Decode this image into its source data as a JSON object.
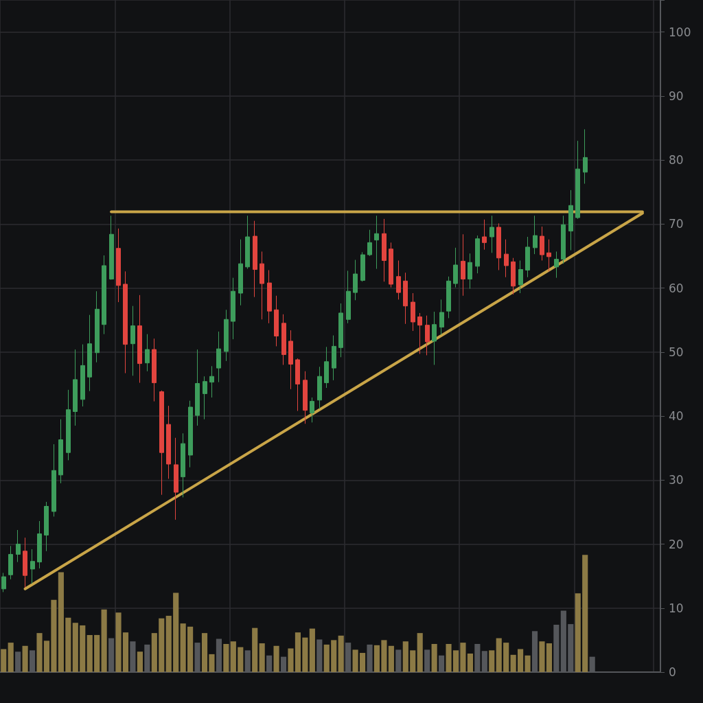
{
  "chart_data": {
    "type": "candlestick",
    "categories": [
      null,
      null,
      null,
      null,
      null,
      null,
      null,
      null,
      null,
      null,
      null,
      null,
      null,
      null,
      null,
      null,
      null,
      null,
      null,
      null,
      null,
      null,
      null,
      null,
      null,
      null,
      null,
      null,
      null,
      null,
      null,
      null,
      null,
      null,
      null,
      null,
      null,
      null,
      null,
      null,
      null,
      null,
      null,
      null,
      null,
      null,
      null,
      null,
      null,
      null,
      null,
      null,
      null,
      null,
      null,
      null,
      null,
      null,
      null,
      null,
      null,
      null,
      null,
      null,
      null,
      null,
      null,
      null,
      null,
      null,
      null,
      null,
      null,
      null,
      null,
      null,
      null,
      null,
      null,
      null,
      null,
      null,
      null,
      null,
      null,
      null,
      null,
      null,
      null,
      null,
      null,
      null
    ],
    "series": [
      {
        "type": "bar",
        "values": [
          3.6,
          4.6,
          3.2,
          4.1,
          3.4,
          6.1,
          4.9,
          11.3,
          15.6,
          8.5,
          7.7,
          7.3,
          5.8,
          5.8,
          9.8,
          5.3,
          9.3,
          6.2,
          4.8,
          3.2,
          4.3,
          6.1,
          8.4,
          8.8,
          12.4,
          7.6,
          7.1,
          4.6,
          6.1,
          2.8,
          5.2,
          4.4,
          4.8,
          3.9,
          3.4,
          6.9,
          4.5,
          2.6,
          4.1,
          2.4,
          3.7,
          6.2,
          5.4,
          6.8,
          5.1,
          4.3,
          5.0,
          5.7,
          4.6,
          3.5,
          3.0,
          4.3,
          4.2,
          5.0,
          4.1,
          3.5,
          4.8,
          3.4,
          6.1,
          3.5,
          4.4,
          2.6,
          4.4,
          3.4,
          4.6,
          2.9,
          4.4,
          3.3,
          3.4,
          5.3,
          4.6,
          2.7,
          3.6,
          2.6,
          6.4,
          4.8,
          4.5,
          7.4,
          9.6,
          7.5,
          12.3,
          18.3,
          2.4,
          null,
          null,
          null,
          null,
          null,
          null,
          null,
          null,
          null
        ],
        "colors": [
          "#8c7a45",
          "#8c7a45",
          "#55575b",
          "#8c7a45",
          "#55575b",
          "#8c7a45",
          "#8c7a45",
          "#8c7a45",
          "#8c7a45",
          "#8c7a45",
          "#8c7a45",
          "#8c7a45",
          "#8c7a45",
          "#8c7a45",
          "#8c7a45",
          "#55575b",
          "#8c7a45",
          "#8c7a45",
          "#55575b",
          "#8c7a45",
          "#55575b",
          "#8c7a45",
          "#8c7a45",
          "#8c7a45",
          "#8c7a45",
          "#8c7a45",
          "#8c7a45",
          "#55575b",
          "#8c7a45",
          "#8c7a45",
          "#55575b",
          "#8c7a45",
          "#8c7a45",
          "#8c7a45",
          "#55575b",
          "#8c7a45",
          "#8c7a45",
          "#55575b",
          "#8c7a45",
          "#55575b",
          "#8c7a45",
          "#8c7a45",
          "#8c7a45",
          "#8c7a45",
          "#55575b",
          "#8c7a45",
          "#8c7a45",
          "#8c7a45",
          "#55575b",
          "#8c7a45",
          "#8c7a45",
          "#55575b",
          "#8c7a45",
          "#8c7a45",
          "#8c7a45",
          "#55575b",
          "#8c7a45",
          "#8c7a45",
          "#8c7a45",
          "#55575b",
          "#8c7a45",
          "#55575b",
          "#8c7a45",
          "#8c7a45",
          "#8c7a45",
          "#8c7a45",
          "#55575b",
          "#55575b",
          "#8c7a45",
          "#8c7a45",
          "#8c7a45",
          "#8c7a45",
          "#8c7a45",
          "#8c7a45",
          "#55575b",
          "#8c7a45",
          "#8c7a45",
          "#55575b",
          "#55575b",
          "#55575b",
          "#8c7a45",
          "#8c7a45",
          "#55575b",
          null,
          null,
          null,
          null,
          null,
          null,
          null,
          null,
          null
        ]
      },
      {
        "type": "line",
        "color": "#c9a548",
        "values": [
          null,
          null,
          null,
          13.0,
          null,
          null,
          null,
          null,
          null,
          null,
          null,
          null,
          null,
          null,
          null,
          null,
          null,
          null,
          null,
          null,
          null,
          null,
          null,
          null,
          null,
          null,
          null,
          null,
          null,
          null,
          null,
          null,
          null,
          null,
          null,
          null,
          null,
          null,
          null,
          null,
          null,
          null,
          null,
          null,
          null,
          null,
          null,
          null,
          null,
          null,
          null,
          null,
          null,
          null,
          null,
          null,
          null,
          null,
          null,
          null,
          null,
          null,
          null,
          null,
          null,
          null,
          null,
          null,
          null,
          null,
          null,
          null,
          null,
          null,
          null,
          null,
          null,
          null,
          null,
          null,
          null,
          null,
          null,
          null,
          null,
          null,
          null,
          null,
          null,
          71.7,
          null,
          null
        ]
      },
      {
        "type": "line",
        "color": "#c9a548",
        "values": [
          null,
          null,
          null,
          null,
          null,
          null,
          null,
          null,
          null,
          null,
          null,
          null,
          null,
          null,
          null,
          71.9,
          null,
          null,
          null,
          null,
          null,
          null,
          null,
          null,
          null,
          null,
          null,
          null,
          null,
          null,
          null,
          null,
          null,
          null,
          null,
          null,
          null,
          null,
          null,
          null,
          null,
          null,
          null,
          null,
          null,
          null,
          null,
          null,
          null,
          null,
          null,
          null,
          null,
          null,
          null,
          null,
          null,
          null,
          null,
          null,
          null,
          null,
          null,
          null,
          null,
          null,
          null,
          null,
          null,
          null,
          null,
          null,
          null,
          null,
          null,
          null,
          null,
          null,
          null,
          null,
          null,
          null,
          null,
          null,
          null,
          null,
          null,
          null,
          null,
          71.9,
          null,
          null
        ]
      },
      {
        "ohlc": [
          [
            13.0,
            15.5,
            12.5,
            14.9
          ],
          [
            15.2,
            19.7,
            14.5,
            18.4
          ],
          [
            18.4,
            22.2,
            17.2,
            20.0
          ],
          [
            18.9,
            21.0,
            13.2,
            15.1
          ],
          [
            16.1,
            19.2,
            13.8,
            17.3
          ],
          [
            17.2,
            23.6,
            16.2,
            21.6
          ],
          [
            21.4,
            26.6,
            18.9,
            25.9
          ],
          [
            25.1,
            35.6,
            24.3,
            31.5
          ],
          [
            30.8,
            39.5,
            29.5,
            36.3
          ],
          [
            34.3,
            44.1,
            33.1,
            41.0
          ],
          [
            40.7,
            50.4,
            38.5,
            45.7
          ],
          [
            42.6,
            51.2,
            41.5,
            47.9
          ],
          [
            46.1,
            55.8,
            43.9,
            51.3
          ],
          [
            49.9,
            59.5,
            48.4,
            56.7
          ],
          [
            54.3,
            65.1,
            52.8,
            63.5
          ],
          [
            61.4,
            71.3,
            61.3,
            68.4
          ],
          [
            66.2,
            69.3,
            57.8,
            60.4
          ],
          [
            60.6,
            62.6,
            46.7,
            51.2
          ],
          [
            51.3,
            57.2,
            46.3,
            54.1
          ],
          [
            54.1,
            58.9,
            45.2,
            48.2
          ],
          [
            48.3,
            52.8,
            47.0,
            50.4
          ],
          [
            50.4,
            52.1,
            42.3,
            45.2
          ],
          [
            43.8,
            44.0,
            27.7,
            34.3
          ],
          [
            38.7,
            41.6,
            30.2,
            32.5
          ],
          [
            32.4,
            36.6,
            23.8,
            28.1
          ],
          [
            30.5,
            37.3,
            27.3,
            35.7
          ],
          [
            33.9,
            42.4,
            32.0,
            41.4
          ],
          [
            40.1,
            50.4,
            38.5,
            45.1
          ],
          [
            43.5,
            46.2,
            39.5,
            45.4
          ],
          [
            45.3,
            47.8,
            42.9,
            46.2
          ],
          [
            47.5,
            53.2,
            45.3,
            50.5
          ],
          [
            50.1,
            56.6,
            48.6,
            55.1
          ],
          [
            54.8,
            61.6,
            52.0,
            59.5
          ],
          [
            59.2,
            67.6,
            57.3,
            63.8
          ],
          [
            63.3,
            71.3,
            63.0,
            68.0
          ],
          [
            68.1,
            70.5,
            58.6,
            62.9
          ],
          [
            63.8,
            65.7,
            55.1,
            60.7
          ],
          [
            60.8,
            62.8,
            54.5,
            56.4
          ],
          [
            56.6,
            58.8,
            50.9,
            52.5
          ],
          [
            54.5,
            55.9,
            48.0,
            49.6
          ],
          [
            51.7,
            53.4,
            44.2,
            48.1
          ],
          [
            48.8,
            49.0,
            40.8,
            45.0
          ],
          [
            45.6,
            47.0,
            38.8,
            40.9
          ],
          [
            40.5,
            42.9,
            39.0,
            42.3
          ],
          [
            42.5,
            47.7,
            41.1,
            46.2
          ],
          [
            45.2,
            50.8,
            44.4,
            48.5
          ],
          [
            47.5,
            52.6,
            45.6,
            50.9
          ],
          [
            50.7,
            57.6,
            49.2,
            56.1
          ],
          [
            55.1,
            62.7,
            54.5,
            59.5
          ],
          [
            59.3,
            64.4,
            58.1,
            62.2
          ],
          [
            61.2,
            65.6,
            61.0,
            65.2
          ],
          [
            65.2,
            69.1,
            65.0,
            67.1
          ],
          [
            67.5,
            71.3,
            63.0,
            68.5
          ],
          [
            68.5,
            70.8,
            61.0,
            64.3
          ],
          [
            66.1,
            67.1,
            60.1,
            60.6
          ],
          [
            61.8,
            64.3,
            58.2,
            59.3
          ],
          [
            61.1,
            62.4,
            54.4,
            57.2
          ],
          [
            57.8,
            59.2,
            53.3,
            54.7
          ],
          [
            55.5,
            56.1,
            49.7,
            54.2
          ],
          [
            54.2,
            55.7,
            49.5,
            51.6
          ],
          [
            51.7,
            56.3,
            48.0,
            54.3
          ],
          [
            53.9,
            58.2,
            52.7,
            56.2
          ],
          [
            56.4,
            61.8,
            55.3,
            61.1
          ],
          [
            60.7,
            66.3,
            60.1,
            63.6
          ],
          [
            64.2,
            68.4,
            58.8,
            61.4
          ],
          [
            61.4,
            65.4,
            59.9,
            64.0
          ],
          [
            63.4,
            68.2,
            62.3,
            67.7
          ],
          [
            68.0,
            70.7,
            66.0,
            67.1
          ],
          [
            68.0,
            71.3,
            65.5,
            69.5
          ],
          [
            69.5,
            70.1,
            62.8,
            64.7
          ],
          [
            65.3,
            67.6,
            61.7,
            63.5
          ],
          [
            64.1,
            64.7,
            59.0,
            60.3
          ],
          [
            60.5,
            64.3,
            59.2,
            62.9
          ],
          [
            62.8,
            68.0,
            61.7,
            66.4
          ],
          [
            66.3,
            71.3,
            65.3,
            68.2
          ],
          [
            68.1,
            69.6,
            64.3,
            65.2
          ],
          [
            65.5,
            67.6,
            62.6,
            64.9
          ],
          [
            63.3,
            65.7,
            61.6,
            64.5
          ],
          [
            64.5,
            71.3,
            63.8,
            69.9
          ],
          [
            68.9,
            75.3,
            65.9,
            72.9
          ],
          [
            71.0,
            83.0,
            70.8,
            78.6
          ],
          [
            78.1,
            84.8,
            76.3,
            80.4
          ],
          null,
          null,
          null,
          null,
          null,
          null,
          null,
          null,
          null,
          null
        ],
        "colors": [
          "#3e9d5c",
          "#3e9d5c",
          "#3e9d5c",
          "#e2453f",
          "#3e9d5c",
          "#3e9d5c",
          "#3e9d5c",
          "#3e9d5c",
          "#3e9d5c",
          "#3e9d5c",
          "#3e9d5c",
          "#3e9d5c",
          "#3e9d5c",
          "#3e9d5c",
          "#3e9d5c",
          "#3e9d5c",
          "#e2453f",
          "#e2453f",
          "#3e9d5c",
          "#e2453f",
          "#3e9d5c",
          "#e2453f",
          "#e2453f",
          "#e2453f",
          "#e2453f",
          "#3e9d5c",
          "#3e9d5c",
          "#3e9d5c",
          "#3e9d5c",
          "#3e9d5c",
          "#3e9d5c",
          "#3e9d5c",
          "#3e9d5c",
          "#3e9d5c",
          "#3e9d5c",
          "#e2453f",
          "#e2453f",
          "#e2453f",
          "#e2453f",
          "#e2453f",
          "#e2453f",
          "#e2453f",
          "#e2453f",
          "#3e9d5c",
          "#3e9d5c",
          "#3e9d5c",
          "#3e9d5c",
          "#3e9d5c",
          "#3e9d5c",
          "#3e9d5c",
          "#3e9d5c",
          "#3e9d5c",
          "#3e9d5c",
          "#e2453f",
          "#e2453f",
          "#e2453f",
          "#e2453f",
          "#e2453f",
          "#e2453f",
          "#e2453f",
          "#3e9d5c",
          "#3e9d5c",
          "#3e9d5c",
          "#3e9d5c",
          "#e2453f",
          "#3e9d5c",
          "#3e9d5c",
          "#e2453f",
          "#3e9d5c",
          "#e2453f",
          "#e2453f",
          "#e2453f",
          "#3e9d5c",
          "#3e9d5c",
          "#3e9d5c",
          "#e2453f",
          "#e2453f",
          "#3e9d5c",
          "#3e9d5c",
          "#3e9d5c",
          "#3e9d5c",
          "#3e9d5c",
          null,
          null,
          null,
          null,
          null,
          null,
          null,
          null,
          null,
          null
        ]
      }
    ],
    "ylim": [
      0,
      105
    ],
    "yticks": [
      0,
      10,
      20,
      30,
      40,
      50,
      60,
      70,
      80,
      90,
      100
    ],
    "grid": true,
    "tick_labels": "y"
  }
}
